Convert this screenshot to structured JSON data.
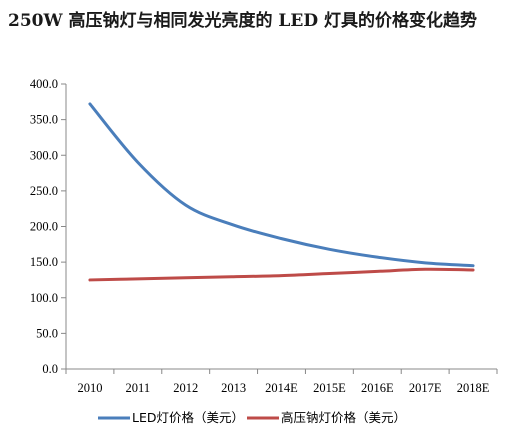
{
  "chart_data": {
    "type": "line",
    "title": "250W 高压钠灯与相同发光亮度的 LED 灯具的价格变化趋势",
    "categories": [
      "2010",
      "2011",
      "2012",
      "2013",
      "2014E",
      "2015E",
      "2016E",
      "2017E",
      "2018E"
    ],
    "ylim": [
      0,
      400
    ],
    "yticks": [
      "0.0",
      "50.0",
      "100.0",
      "150.0",
      "200.0",
      "250.0",
      "300.0",
      "350.0",
      "400.0"
    ],
    "grid": false,
    "legend_position": "bottom",
    "series": [
      {
        "name": "LED灯价格（美元）",
        "color": "#4a7ebb",
        "values": [
          372,
          290,
          230,
          202,
          183,
          168,
          157,
          149,
          145
        ]
      },
      {
        "name": "高压钠灯价格（美元）",
        "color": "#be4b48",
        "values": [
          125,
          126.5,
          128,
          129.5,
          131,
          134,
          137,
          140,
          139
        ]
      }
    ]
  }
}
